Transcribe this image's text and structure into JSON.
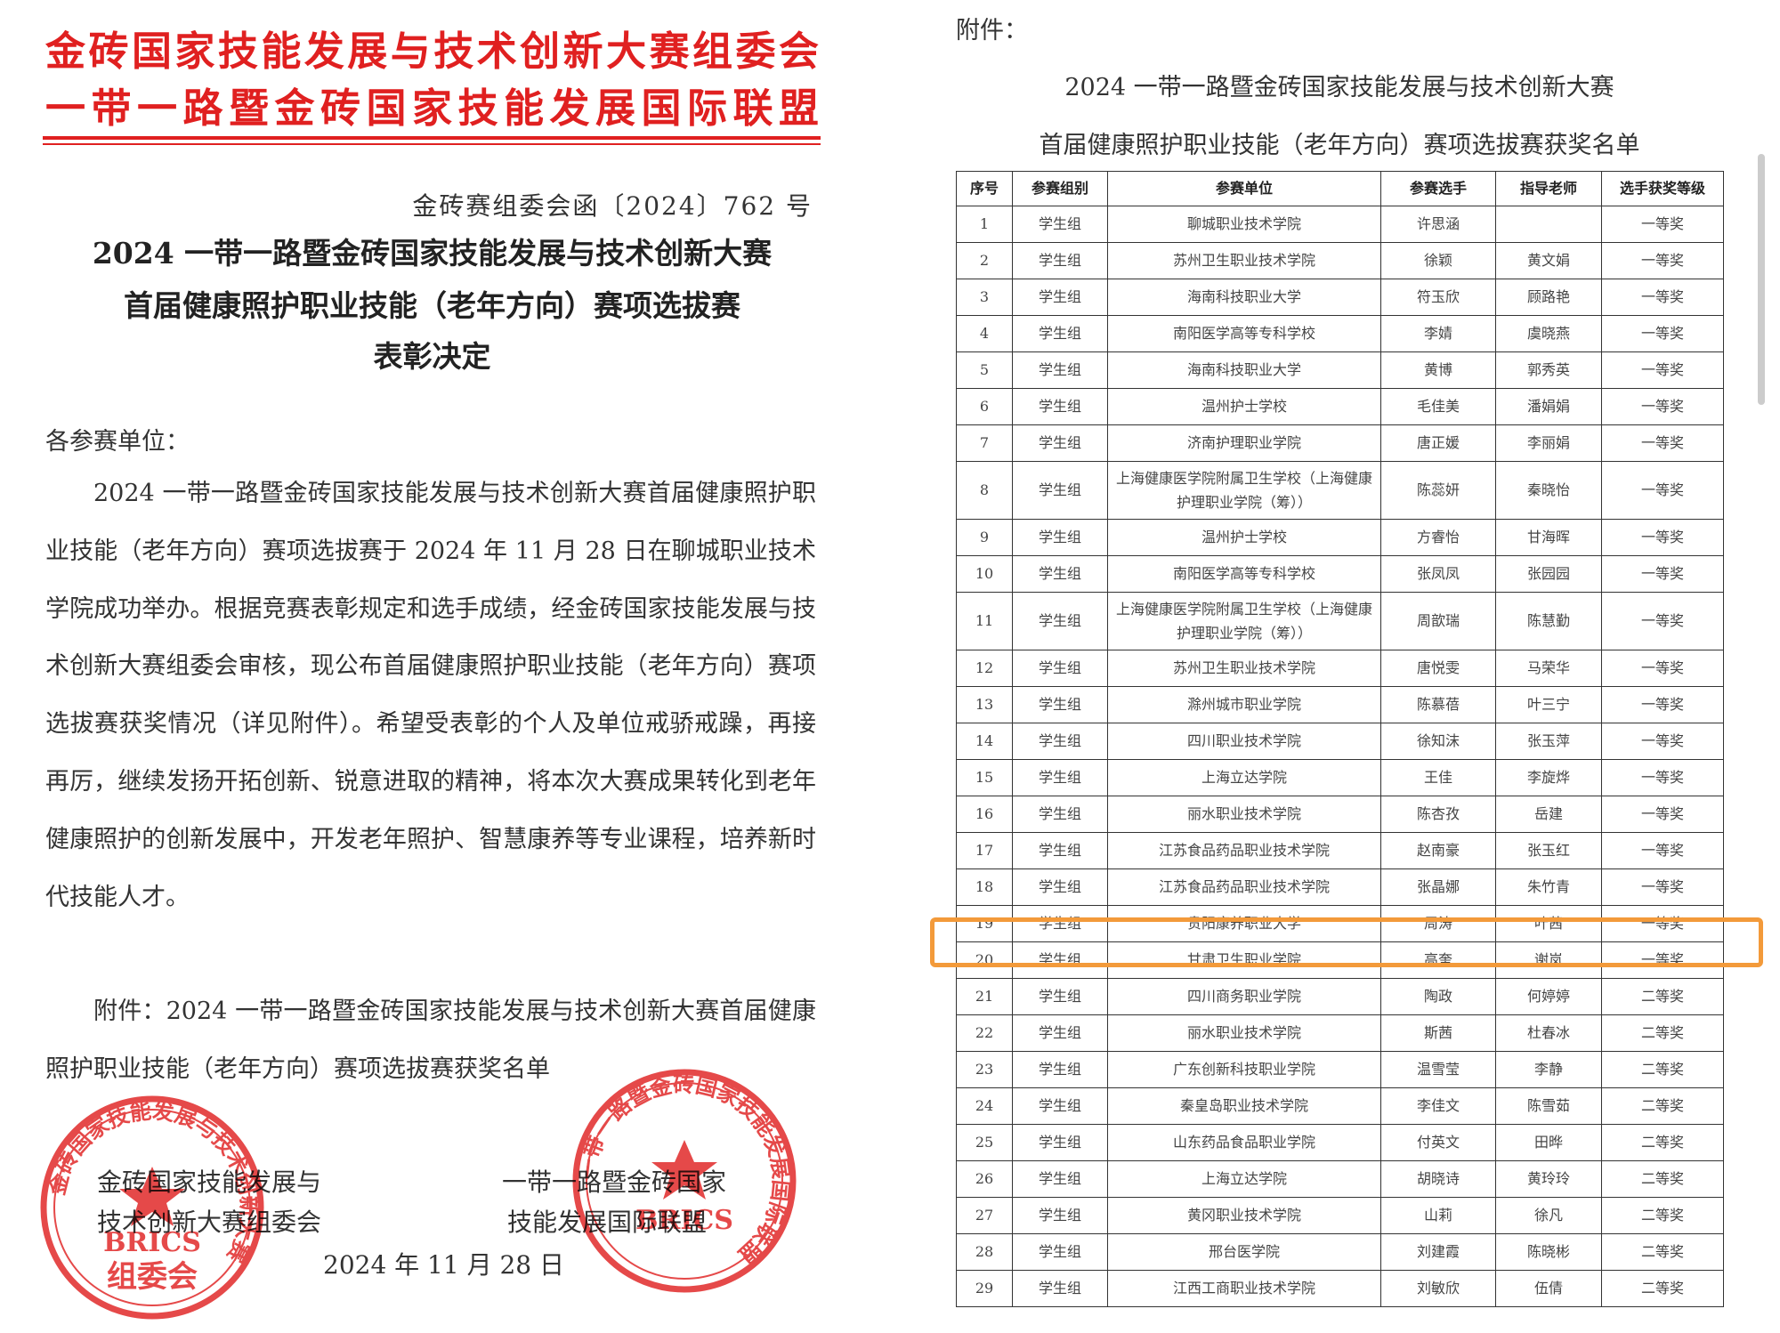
{
  "letterhead": {
    "line1": "金砖国家技能发展与技术创新大赛组委会",
    "line2": "一带一路暨金砖国家技能发展国际联盟"
  },
  "doc_number": "金砖赛组委会函〔2024〕762 号",
  "title": [
    "2024 一带一路暨金砖国家技能发展与技术创新大赛",
    "首届健康照护职业技能（老年方向）赛项选拔赛",
    "表彰决定"
  ],
  "salutation": "各参赛单位：",
  "body": "2024 一带一路暨金砖国家技能发展与技术创新大赛首届健康照护职业技能（老年方向）赛项选拔赛于 2024 年 11 月 28 日在聊城职业技术学院成功举办。根据竞赛表彰规定和选手成绩，经金砖国家技能发展与技术创新大赛组委会审核，现公布首届健康照护职业技能（老年方向）赛项选拔赛获奖情况（详见附件）。希望受表彰的个人及单位戒骄戒躁，再接再厉，继续发扬开拓创新、锐意进取的精神，将本次大赛成果转化到老年健康照护的创新发展中，开发老年照护、智慧康养等专业课程，培养新时代技能人才。",
  "attachment_note": "附件：2024 一带一路暨金砖国家技能发展与技术创新大赛首届健康照护职业技能（老年方向）赛项选拔赛获奖名单",
  "signatures": [
    [
      "金砖国家技能发展与",
      "技术创新大赛组委会"
    ],
    [
      "一带一路暨金砖国家",
      "技能发展国际联盟"
    ]
  ],
  "date": "2024 年 11 月 28 日",
  "seals": [
    {
      "ring": "金砖国家技能发展与技术创新大赛",
      "center": "BRICS",
      "bottom": "组委会"
    },
    {
      "ring": "一带一路暨金砖国家技能发展国际联盟",
      "center": "BRICS"
    }
  ],
  "attachment": {
    "label": "附件：",
    "title": [
      "2024 一带一路暨金砖国家技能发展与技术创新大赛",
      "首届健康照护职业技能（老年方向）赛项选拔赛获奖名单"
    ],
    "table": {
      "header": [
        "序号",
        "参赛组别",
        "参赛单位",
        "参赛选手",
        "指导老师",
        "选手获奖等级"
      ],
      "rows": [
        [
          "1",
          "学生组",
          "聊城职业技术学院",
          "许思涵",
          null,
          "一等奖"
        ],
        [
          "2",
          "学生组",
          "苏州卫生职业技术学院",
          "徐颖",
          "黄文娟",
          "一等奖"
        ],
        [
          "3",
          "学生组",
          "海南科技职业大学",
          "符玉欣",
          "顾路艳",
          "一等奖"
        ],
        [
          "4",
          "学生组",
          "南阳医学高等专科学校",
          "李婧",
          "虞晓燕",
          "一等奖"
        ],
        [
          "5",
          "学生组",
          "海南科技职业大学",
          "黄博",
          "郭秀英",
          "一等奖"
        ],
        [
          "6",
          "学生组",
          "温州护士学校",
          "毛佳美",
          "潘娟娟",
          "一等奖"
        ],
        [
          "7",
          "学生组",
          "济南护理职业学院",
          "唐正媛",
          "李丽娟",
          "一等奖"
        ],
        [
          "8",
          "学生组",
          "上海健康医学院附属卫生学校（上海健康护理职业学院（筹））",
          "陈蕊妍",
          "秦晓怡",
          "一等奖"
        ],
        [
          "9",
          "学生组",
          "温州护士学校",
          "方睿怡",
          "甘海晖",
          "一等奖"
        ],
        [
          "10",
          "学生组",
          "南阳医学高等专科学校",
          "张凤凤",
          "张园园",
          "一等奖"
        ],
        [
          "11",
          "学生组",
          "上海健康医学院附属卫生学校（上海健康护理职业学院（筹））",
          "周歆瑞",
          "陈慧勤",
          "一等奖"
        ],
        [
          "12",
          "学生组",
          "苏州卫生职业技术学院",
          "唐悦雯",
          "马荣华",
          "一等奖"
        ],
        [
          "13",
          "学生组",
          "滁州城市职业学院",
          "陈慕蓓",
          "叶三宁",
          "一等奖"
        ],
        [
          "14",
          "学生组",
          "四川职业技术学院",
          "徐知沫",
          "张玉萍",
          "一等奖"
        ],
        [
          "15",
          "学生组",
          "上海立达学院",
          "王佳",
          "李旋烨",
          "一等奖"
        ],
        [
          "16",
          "学生组",
          "丽水职业技术学院",
          "陈杏孜",
          "岳建",
          "一等奖"
        ],
        [
          "17",
          "学生组",
          "江苏食品药品职业技术学院",
          "赵南豪",
          "张玉红",
          "一等奖"
        ],
        [
          "18",
          "学生组",
          "江苏食品药品职业技术学院",
          "张晶娜",
          "朱竹青",
          "一等奖"
        ],
        [
          "19",
          "学生组",
          "贵阳康养职业大学",
          "周涛",
          "叶茜",
          "一等奖"
        ],
        [
          "20",
          "学生组",
          "甘肃卫生职业学院",
          "高奎",
          "谢岚",
          "一等奖"
        ],
        [
          "21",
          "学生组",
          "四川商务职业学院",
          "陶政",
          "何婷婷",
          "二等奖"
        ],
        [
          "22",
          "学生组",
          "丽水职业技术学院",
          "斯茜",
          "杜春冰",
          "二等奖"
        ],
        [
          "23",
          "学生组",
          "广东创新科技职业学院",
          "温雪莹",
          "李静",
          "二等奖"
        ],
        [
          "24",
          "学生组",
          "秦皇岛职业技术学院",
          "李佳文",
          "陈雪茹",
          "二等奖"
        ],
        [
          "25",
          "学生组",
          "山东药品食品职业学院",
          "付英文",
          "田晔",
          "二等奖"
        ],
        [
          "26",
          "学生组",
          "上海立达学院",
          "胡晓诗",
          "黄玲玲",
          "二等奖"
        ],
        [
          "27",
          "学生组",
          "黄冈职业技术学院",
          "山莉",
          "徐凡",
          "二等奖"
        ],
        [
          "28",
          "学生组",
          "邢台医学院",
          "刘建霞",
          "陈晓彬",
          "二等奖"
        ],
        [
          "29",
          "学生组",
          "江西工商职业技术学院",
          "刘敏欣",
          "伍倩",
          "二等奖"
        ]
      ]
    }
  }
}
